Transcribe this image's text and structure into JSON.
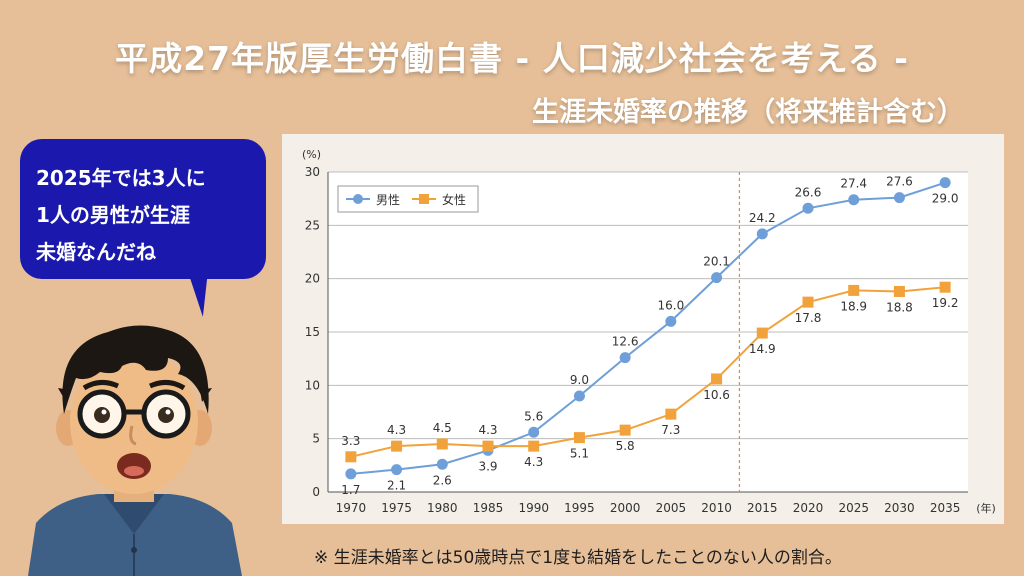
{
  "header": {
    "title": "平成27年版厚生労働白書 - 人口減少社会を考える -",
    "subtitle": "生涯未婚率の推移（将来推計含む）"
  },
  "speech_bubble": {
    "lines": [
      "2025年では3人に",
      "1人の男性が生涯",
      "未婚なんだね"
    ]
  },
  "footnote": "※ 生涯未婚率とは50歳時点で1度も結婚をしたことのない人の割合。",
  "colors": {
    "background": "#e6bf98",
    "male": "#6f9fd8",
    "female": "#f2a23a",
    "bubble": "#1b19ad"
  },
  "chart_data": {
    "type": "line",
    "y_unit": "(%)",
    "x_unit": "(年)",
    "categories": [
      "1970",
      "1975",
      "1980",
      "1985",
      "1990",
      "1995",
      "2000",
      "2005",
      "2010",
      "2015",
      "2020",
      "2025",
      "2030",
      "2035"
    ],
    "ylim": [
      0,
      30
    ],
    "yticks": [
      0,
      5,
      10,
      15,
      20,
      25,
      30
    ],
    "grid": true,
    "legend_position": "top-left",
    "projection_starts_after": "2010",
    "series": [
      {
        "name": "男性",
        "values": [
          1.7,
          2.1,
          2.6,
          3.9,
          5.6,
          9.0,
          12.6,
          16.0,
          20.1,
          24.2,
          26.6,
          27.4,
          27.6,
          29.0
        ]
      },
      {
        "name": "女性",
        "values": [
          3.3,
          4.3,
          4.5,
          4.3,
          4.3,
          5.1,
          5.8,
          7.3,
          10.6,
          14.9,
          17.8,
          18.9,
          18.8,
          19.2
        ]
      }
    ]
  }
}
